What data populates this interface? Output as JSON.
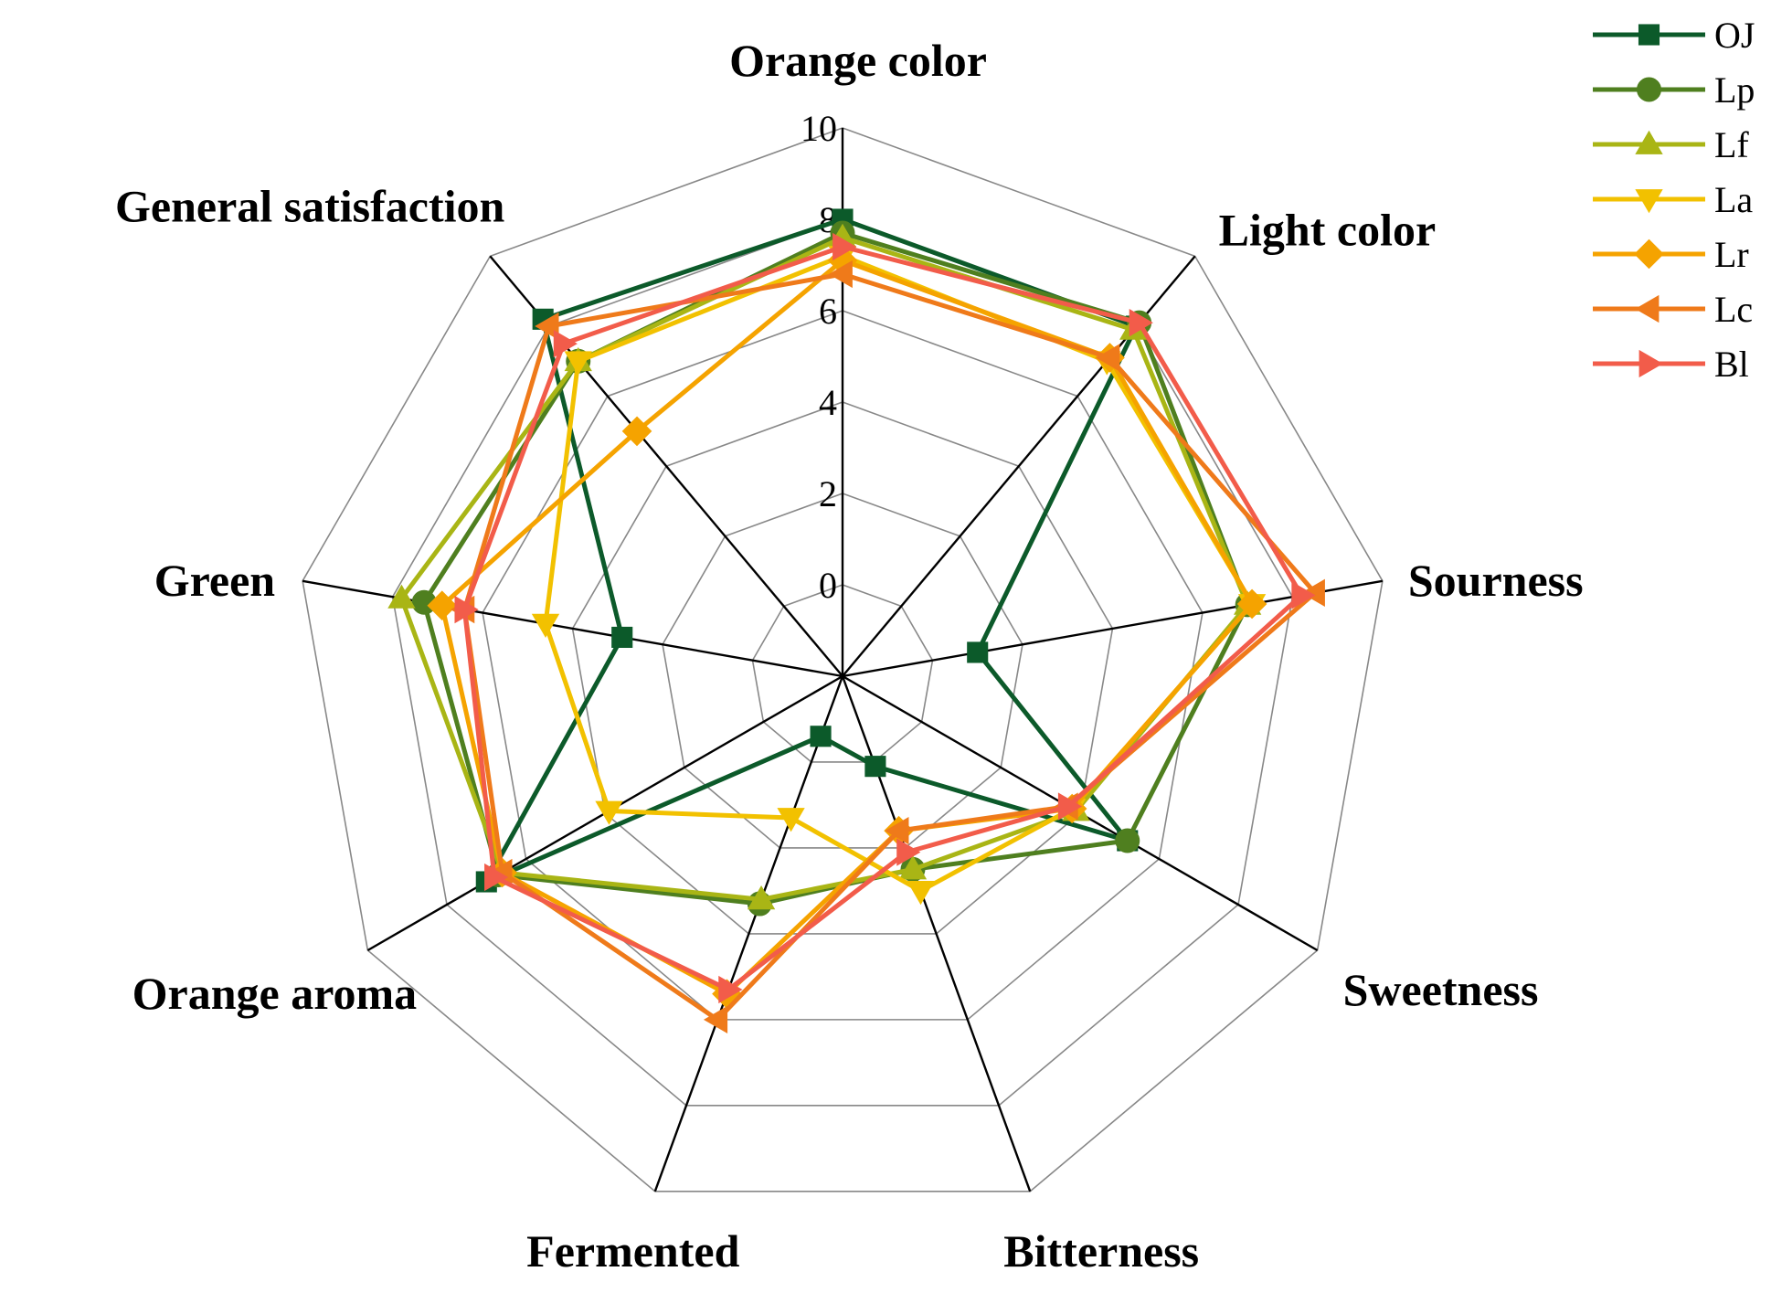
{
  "chart_data": {
    "type": "radar",
    "title": "",
    "axes": [
      "Orange color",
      "Light color",
      "Sourness",
      "Sweetness",
      "Bitterness",
      "Fermented",
      "Orange aroma",
      "Green",
      "General satisfaction"
    ],
    "r_ticks": [
      0,
      2,
      4,
      6,
      8,
      10
    ],
    "r_range": [
      -2,
      10
    ],
    "grid": true,
    "legend_position": "top-right",
    "series": [
      {
        "name": "OJ",
        "color": "#0c5a2a",
        "marker": "square",
        "values": [
          8.0,
          8.0,
          1.0,
          5.2,
          0.1,
          -0.6,
          7.0,
          2.9,
          8.2
        ]
      },
      {
        "name": "Lp",
        "color": "#4f7f1f",
        "marker": "circle",
        "values": [
          7.7,
          8.1,
          7.0,
          5.2,
          2.5,
          3.3,
          6.7,
          7.3,
          7.0
        ]
      },
      {
        "name": "Lf",
        "color": "#a9b515",
        "marker": "triangle-up",
        "values": [
          7.6,
          7.9,
          7.0,
          3.9,
          2.5,
          3.2,
          6.6,
          7.8,
          7.0
        ]
      },
      {
        "name": "La",
        "color": "#f2c100",
        "marker": "triangle-down",
        "values": [
          7.2,
          7.0,
          7.1,
          3.8,
          3.0,
          1.3,
          3.9,
          4.6,
          7.0
        ]
      },
      {
        "name": "Lr",
        "color": "#f5a300",
        "marker": "diamond",
        "values": [
          7.1,
          7.1,
          7.1,
          3.8,
          1.6,
          5.4,
          6.6,
          6.9,
          5.0
        ]
      },
      {
        "name": "Lc",
        "color": "#ef7a1a",
        "marker": "triangle-left",
        "values": [
          6.8,
          7.1,
          8.5,
          3.7,
          1.6,
          6.0,
          6.6,
          6.4,
          8.0
        ]
      },
      {
        "name": "Bl",
        "color": "#f25c4a",
        "marker": "triangle-right",
        "values": [
          7.4,
          8.1,
          8.2,
          3.7,
          2.1,
          5.3,
          6.8,
          6.4,
          7.5
        ]
      }
    ]
  }
}
